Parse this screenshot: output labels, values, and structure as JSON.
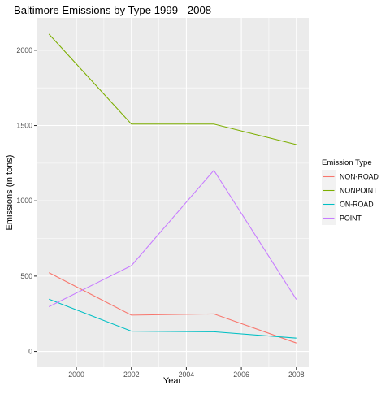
{
  "chart_data": {
    "type": "line",
    "title": "Baltimore Emissions by Type 1999 - 2008",
    "xlabel": "Year",
    "ylabel": "Emissions (in tons)",
    "x": [
      1999,
      2002,
      2005,
      2008
    ],
    "xlim": [
      1998.55,
      2008.45
    ],
    "ylim": [
      -105,
      2215
    ],
    "x_ticks": [
      2000,
      2002,
      2004,
      2006,
      2008
    ],
    "x_tick_labels": [
      "2000",
      "2002",
      "2004",
      "2006",
      "2008"
    ],
    "y_ticks": [
      0,
      500,
      1000,
      1500,
      2000
    ],
    "y_tick_labels": [
      "0",
      "500",
      "1000",
      "1500",
      "2000"
    ],
    "grid": true,
    "legend_title": "Emission Type",
    "legend_position": "right",
    "series": [
      {
        "name": "NON-ROAD",
        "color": "#F8766D",
        "values": [
          522.94,
          240.85,
          248.93,
          55.82
        ]
      },
      {
        "name": "NONPOINT",
        "color": "#7CAE00",
        "values": [
          2107.63,
          1509.5,
          1509.5,
          1373.21
        ]
      },
      {
        "name": "ON-ROAD",
        "color": "#00BFC4",
        "values": [
          346.82,
          134.31,
          130.43,
          88.28
        ]
      },
      {
        "name": "POINT",
        "color": "#C77CFF",
        "values": [
          296.8,
          569.26,
          1202.49,
          344.98
        ]
      }
    ]
  }
}
